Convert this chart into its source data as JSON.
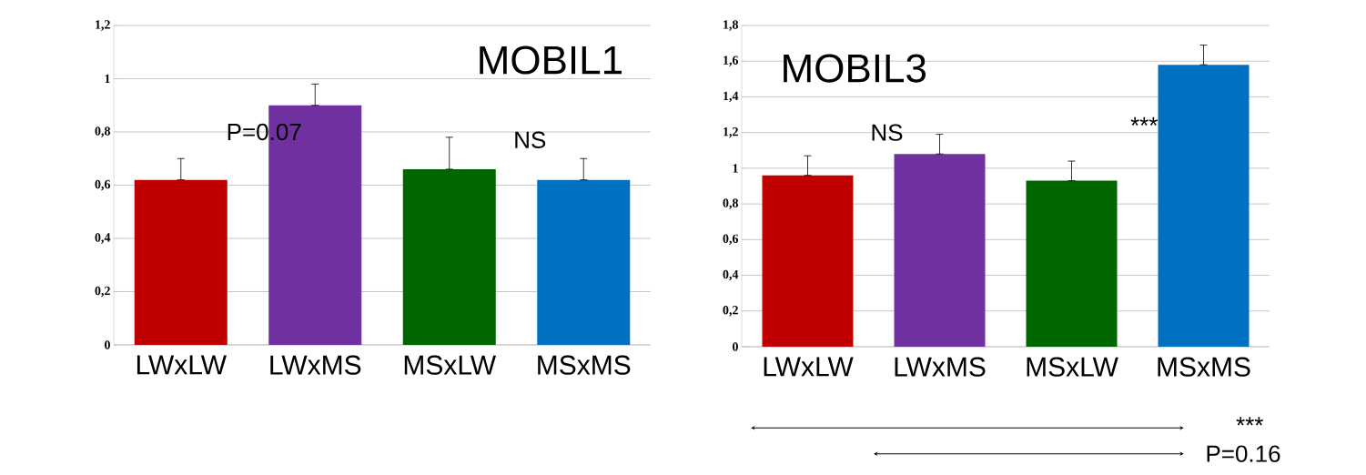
{
  "chart_data": [
    {
      "type": "bar",
      "title": "MOBIL1",
      "categories": [
        "LWxLW",
        "LWxMS",
        "MSxLW",
        "MSxMS"
      ],
      "values": [
        0.62,
        0.9,
        0.66,
        0.62
      ],
      "colors": [
        "#c00000",
        "#7030a0",
        "#006600",
        "#0070c0"
      ],
      "errors": [
        [
          0.62,
          0.7
        ],
        [
          0.9,
          0.98
        ],
        [
          0.66,
          0.78
        ],
        [
          0.62,
          0.7
        ]
      ],
      "ylim": [
        0,
        1.2
      ],
      "yticks": [
        0,
        {
          "value": 0.2,
          "label": "0,2"
        },
        {
          "value": 0.4,
          "label": "0,4"
        },
        {
          "value": 0.6,
          "label": "0,6"
        },
        {
          "value": 0.8,
          "label": "0,8"
        },
        1,
        {
          "value": 1.2,
          "label": "1,2"
        }
      ],
      "grid": "y",
      "annotations": [
        "P=0.07",
        "NS"
      ]
    },
    {
      "type": "bar",
      "title": "MOBIL3",
      "categories": [
        "LWxLW",
        "LWxMS",
        "MSxLW",
        "MSxMS"
      ],
      "values": [
        0.96,
        1.08,
        0.93,
        1.58
      ],
      "colors": [
        "#c00000",
        "#7030a0",
        "#006600",
        "#0070c0"
      ],
      "errors": [
        [
          0.96,
          1.07
        ],
        [
          1.08,
          1.19
        ],
        [
          0.93,
          1.04
        ],
        [
          1.58,
          1.69
        ]
      ],
      "ylim": [
        0,
        1.8
      ],
      "yticks": [
        0,
        {
          "value": 0.2,
          "label": "0,2"
        },
        {
          "value": 0.4,
          "label": "0,4"
        },
        {
          "value": 0.6,
          "label": "0,6"
        },
        {
          "value": 0.8,
          "label": "0,8"
        },
        1,
        {
          "value": 1.2,
          "label": "1,2"
        },
        {
          "value": 1.4,
          "label": "1,4"
        },
        {
          "value": 1.6,
          "label": "1,6"
        },
        {
          "value": 1.8,
          "label": "1,8"
        }
      ],
      "grid": "y",
      "annotations": [
        "NS",
        "***",
        "***",
        "P=0.16"
      ]
    }
  ]
}
